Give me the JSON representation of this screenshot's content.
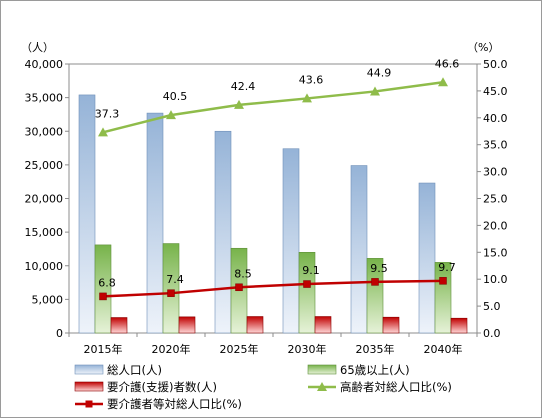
{
  "chart_data": {
    "type": "bar",
    "categories": [
      "2015年",
      "2020年",
      "2025年",
      "2030年",
      "2035年",
      "2040年"
    ],
    "y_left_unit": "（人）",
    "y_right_unit": "（%）",
    "ylim_left": [
      0,
      40000
    ],
    "ylim_right": [
      0,
      50
    ],
    "yticks_left": [
      "0",
      "5,000",
      "10,000",
      "15,000",
      "20,000",
      "25,000",
      "30,000",
      "35,000",
      "40,000"
    ],
    "yticks_right": [
      "0.0",
      "5.0",
      "10.0",
      "15.0",
      "20.0",
      "25.0",
      "30.0",
      "35.0",
      "40.0",
      "45.0",
      "50.0"
    ],
    "grid": false,
    "legend_position": "bottom",
    "series": [
      {
        "name": "総人口(人)",
        "kind": "bar",
        "axis": "left",
        "color": "#4f81bd",
        "values": [
          35400,
          32700,
          30000,
          27400,
          24900,
          22300
        ]
      },
      {
        "name": "65歳以上(人)",
        "kind": "bar",
        "axis": "left",
        "color": "#70ad47",
        "values": [
          13100,
          13300,
          12600,
          12000,
          11100,
          10500
        ]
      },
      {
        "name": "要介護(支援)者数(人)",
        "kind": "bar",
        "axis": "left",
        "color": "#c00000",
        "values": [
          2300,
          2400,
          2450,
          2450,
          2350,
          2200
        ]
      },
      {
        "name": "高齢者対総人口比(%)",
        "kind": "line",
        "axis": "right",
        "color": "#8fbc4a",
        "marker": "triangle",
        "values": [
          37.3,
          40.5,
          42.4,
          43.6,
          44.9,
          46.6
        ],
        "labels": [
          "37.3",
          "40.5",
          "42.4",
          "43.6",
          "44.9",
          "46.6"
        ]
      },
      {
        "name": "要介護者等対総人口比(%)",
        "kind": "line",
        "axis": "right",
        "color": "#c00000",
        "marker": "square",
        "values": [
          6.8,
          7.4,
          8.5,
          9.1,
          9.5,
          9.7
        ],
        "labels": [
          "6.8",
          "7.4",
          "8.5",
          "9.1",
          "9.5",
          "9.7"
        ]
      }
    ]
  }
}
